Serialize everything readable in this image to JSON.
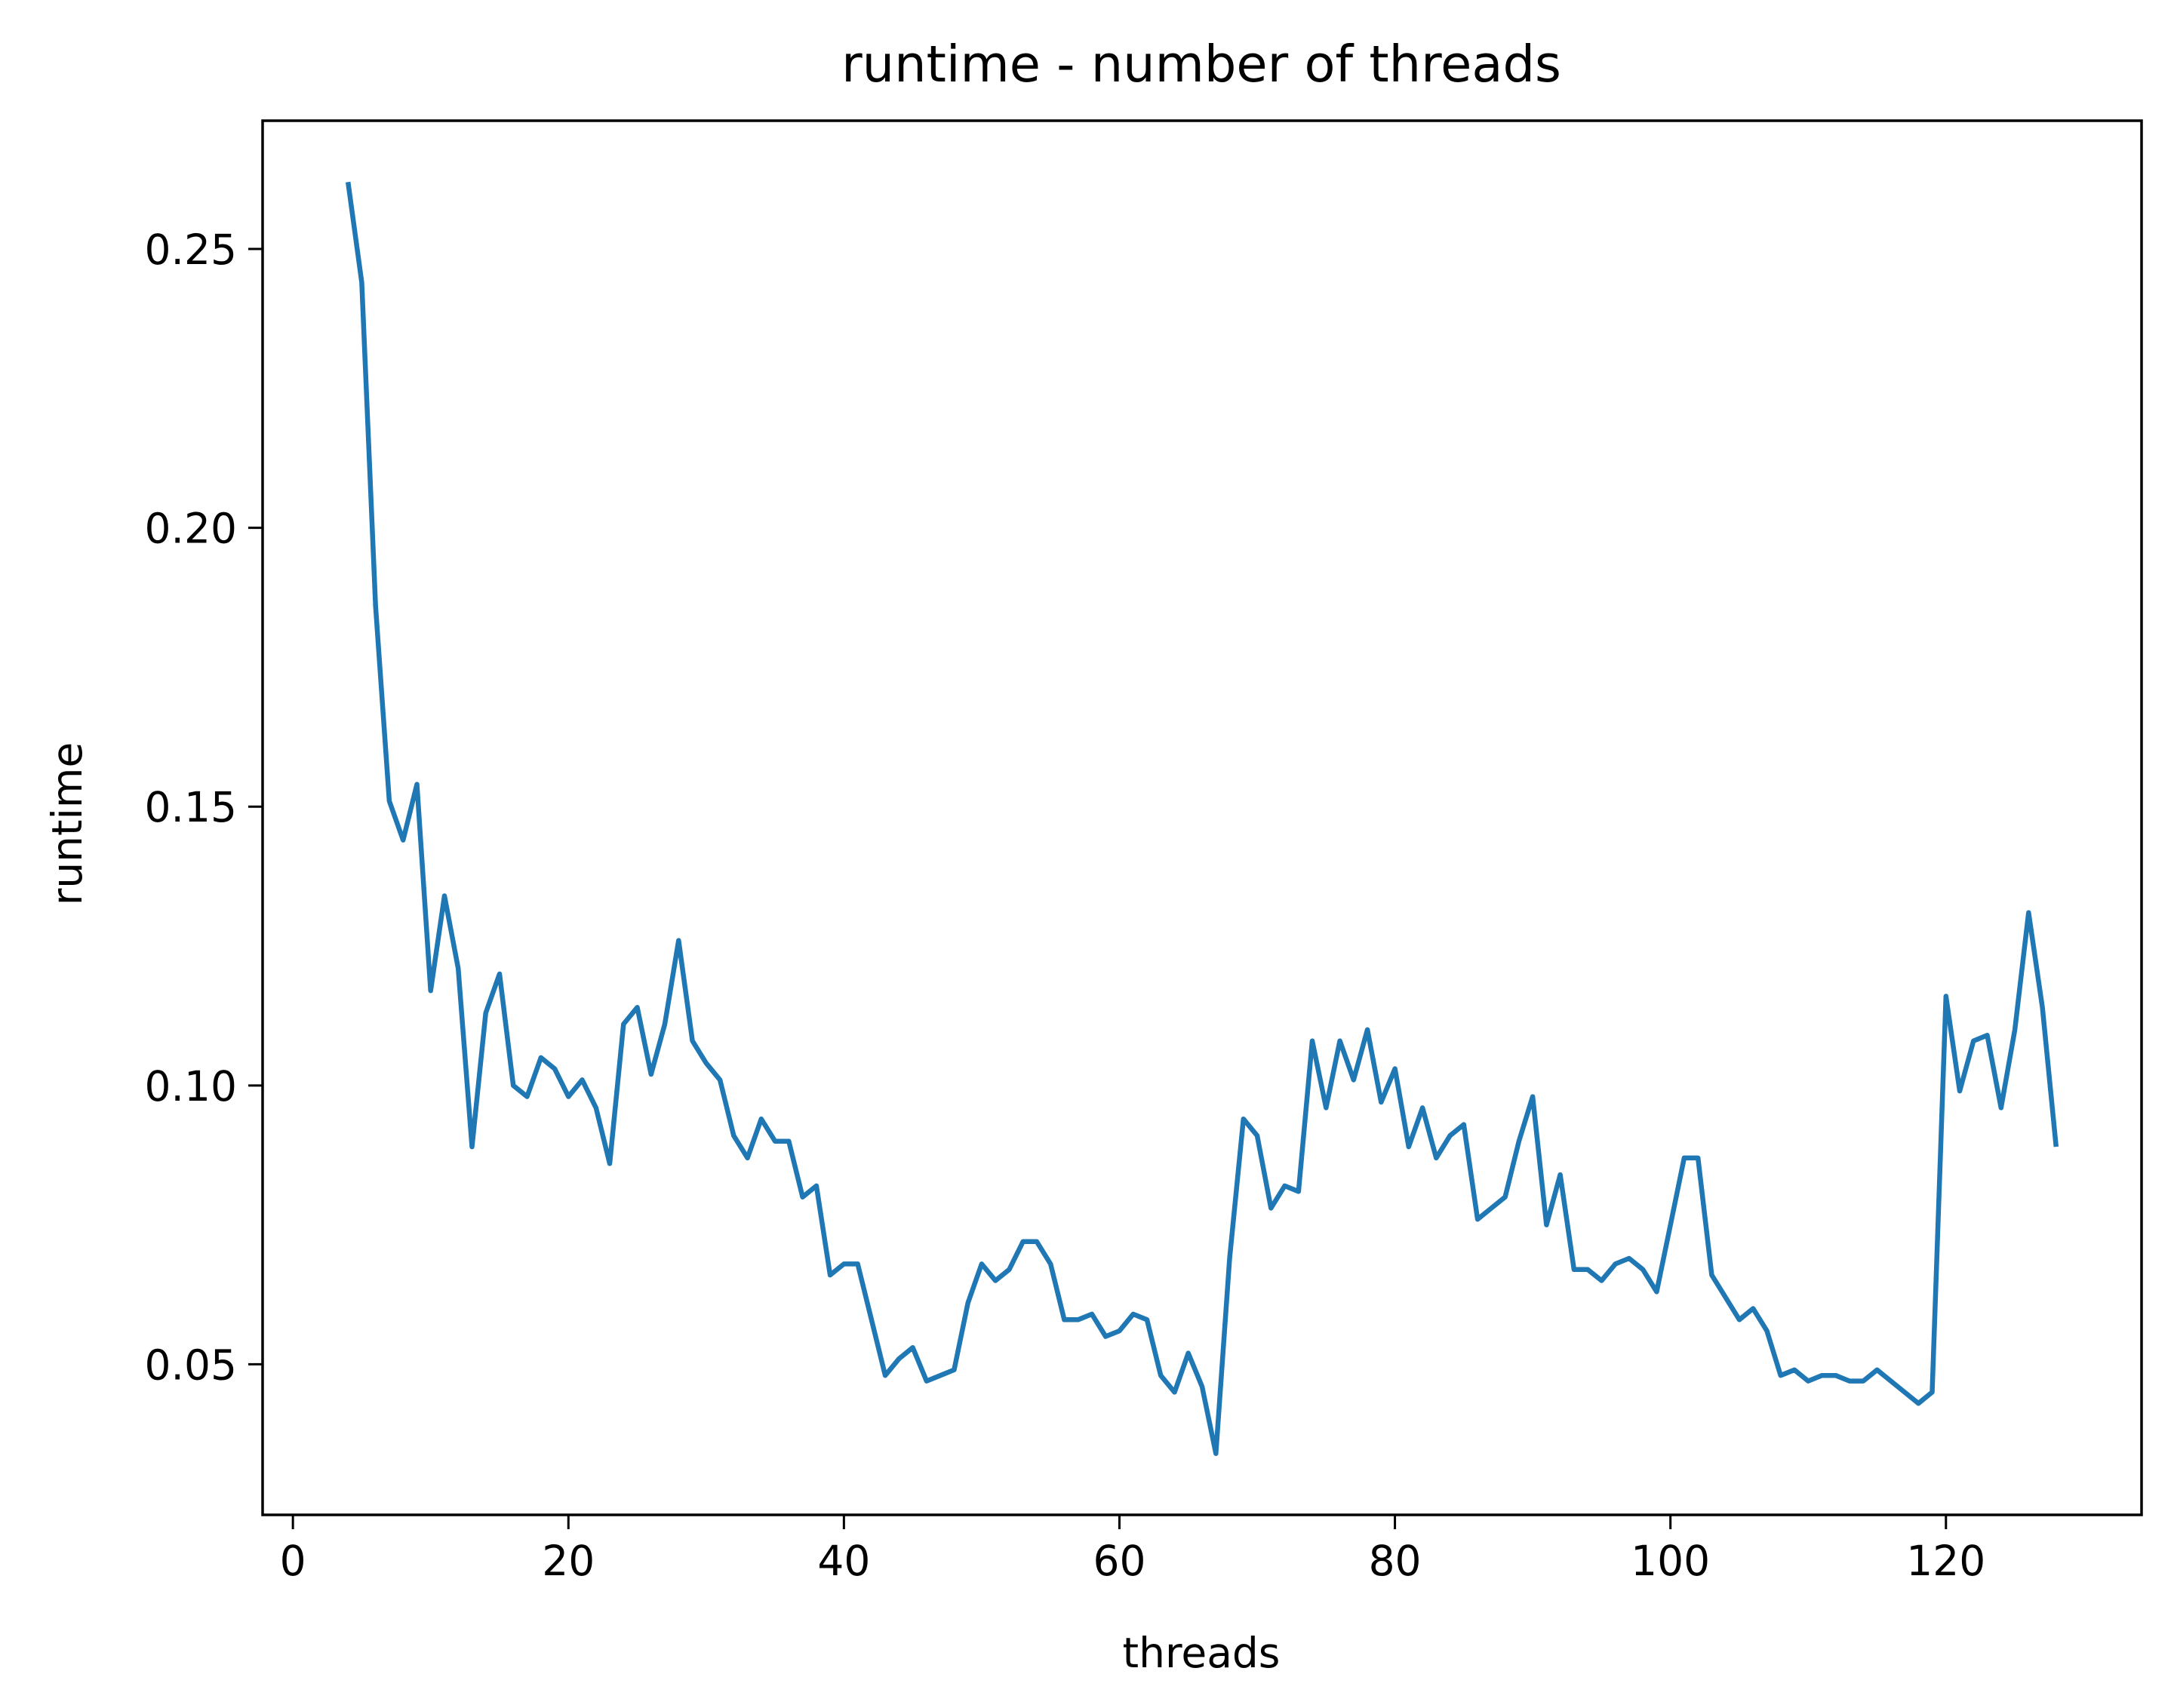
{
  "chart_data": {
    "type": "line",
    "title": "runtime - number of threads",
    "xlabel": "threads",
    "ylabel": "runtime",
    "xlim": [
      -2.2,
      134.2
    ],
    "ylim": [
      0.023,
      0.273
    ],
    "xticks": [
      {
        "value": 0,
        "label": "0"
      },
      {
        "value": 20,
        "label": "20"
      },
      {
        "value": 40,
        "label": "40"
      },
      {
        "value": 60,
        "label": "60"
      },
      {
        "value": 80,
        "label": "80"
      },
      {
        "value": 100,
        "label": "100"
      },
      {
        "value": 120,
        "label": "120"
      }
    ],
    "yticks": [
      {
        "value": 0.05,
        "label": "0.05"
      },
      {
        "value": 0.1,
        "label": "0.10"
      },
      {
        "value": 0.15,
        "label": "0.15"
      },
      {
        "value": 0.2,
        "label": "0.20"
      },
      {
        "value": 0.25,
        "label": "0.25"
      }
    ],
    "grid": false,
    "legend": "none",
    "colors": {
      "series": "#1f77b4",
      "axes": "#000000",
      "background": "#ffffff"
    },
    "series": [
      {
        "x": [
          4,
          5,
          6,
          7,
          8,
          9,
          10,
          11,
          12,
          13,
          14,
          15,
          16,
          17,
          18,
          19,
          20,
          21,
          22,
          23,
          24,
          25,
          26,
          27,
          28,
          29,
          30,
          31,
          32,
          33,
          34,
          35,
          36,
          37,
          38,
          39,
          40,
          41,
          42,
          43,
          44,
          45,
          46,
          47,
          48,
          49,
          50,
          51,
          52,
          53,
          54,
          55,
          56,
          57,
          58,
          59,
          60,
          61,
          62,
          63,
          64,
          65,
          66,
          67,
          68,
          69,
          70,
          71,
          72,
          73,
          74,
          75,
          76,
          77,
          78,
          79,
          80,
          81,
          82,
          83,
          84,
          85,
          86,
          87,
          88,
          89,
          90,
          91,
          92,
          93,
          94,
          95,
          96,
          97,
          98,
          99,
          100,
          101,
          102,
          103,
          104,
          105,
          106,
          107,
          108,
          109,
          110,
          111,
          112,
          113,
          114,
          115,
          116,
          117,
          118,
          119,
          120,
          121,
          122,
          123,
          124,
          125,
          126,
          127,
          128
        ],
        "values": [
          0.262,
          0.244,
          0.186,
          0.151,
          0.144,
          0.154,
          0.117,
          0.134,
          0.121,
          0.089,
          0.113,
          0.12,
          0.1,
          0.098,
          0.105,
          0.103,
          0.098,
          0.101,
          0.096,
          0.086,
          0.111,
          0.114,
          0.102,
          0.111,
          0.126,
          0.108,
          0.104,
          0.101,
          0.091,
          0.087,
          0.094,
          0.09,
          0.09,
          0.08,
          0.082,
          0.066,
          0.068,
          0.068,
          0.058,
          0.048,
          0.051,
          0.053,
          0.047,
          0.048,
          0.049,
          0.061,
          0.068,
          0.065,
          0.067,
          0.072,
          0.072,
          0.068,
          0.058,
          0.058,
          0.059,
          0.055,
          0.056,
          0.059,
          0.058,
          0.048,
          0.045,
          0.052,
          0.046,
          0.034,
          0.069,
          0.094,
          0.091,
          0.078,
          0.082,
          0.081,
          0.108,
          0.096,
          0.108,
          0.101,
          0.11,
          0.097,
          0.103,
          0.089,
          0.096,
          0.087,
          0.091,
          0.093,
          0.076,
          0.078,
          0.08,
          0.09,
          0.098,
          0.075,
          0.084,
          0.067,
          0.067,
          0.065,
          0.068,
          0.069,
          0.067,
          0.063,
          0.075,
          0.087,
          0.087,
          0.066,
          0.062,
          0.058,
          0.06,
          0.056,
          0.048,
          0.049,
          0.047,
          0.048,
          0.048,
          0.047,
          0.047,
          0.049,
          0.047,
          0.045,
          0.043,
          0.045,
          0.116,
          0.099,
          0.108,
          0.109,
          0.096,
          0.11,
          0.131,
          0.114,
          0.089
        ]
      }
    ]
  }
}
